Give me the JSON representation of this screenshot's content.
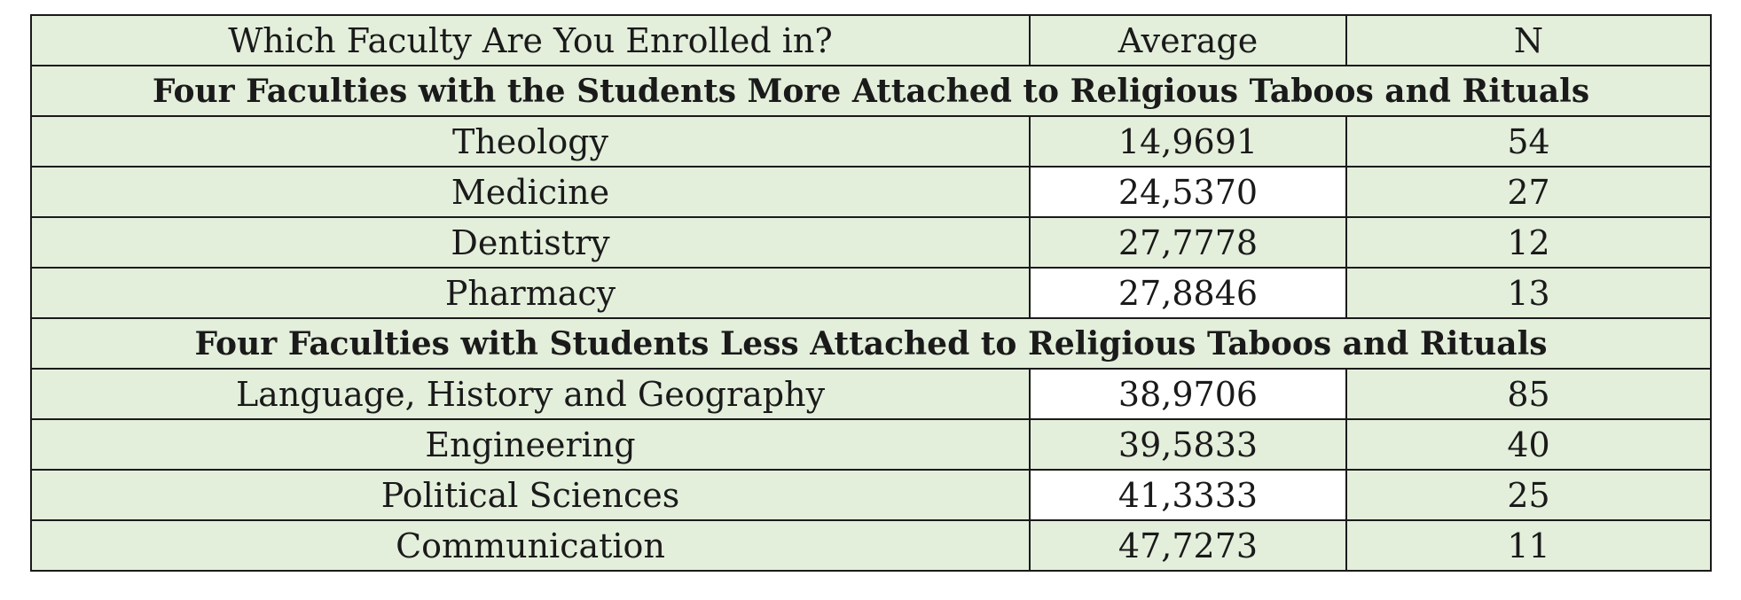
{
  "header": {
    "faculty": "Which Faculty Are You Enrolled in?",
    "average": "Average",
    "n": "N"
  },
  "sections": [
    {
      "title": "Four Faculties with the Students More Attached to Religious Taboos and Rituals",
      "rows": [
        {
          "faculty": "Theology",
          "average": "14,9691",
          "n": "54",
          "average_bg": "#e3eedb"
        },
        {
          "faculty": "Medicine",
          "average": "24,5370",
          "n": "27",
          "average_bg": "#ffffff"
        },
        {
          "faculty": "Dentistry",
          "average": "27,7778",
          "n": "12",
          "average_bg": "#e3eedb"
        },
        {
          "faculty": "Pharmacy",
          "average": "27,8846",
          "n": "13",
          "average_bg": "#ffffff"
        }
      ]
    },
    {
      "title": "Four Faculties with Students Less Attached to Religious Taboos and Rituals",
      "rows": [
        {
          "faculty": "Language, History and Geography",
          "average": "38,9706",
          "n": "85",
          "average_bg": "#ffffff"
        },
        {
          "faculty": "Engineering",
          "average": "39,5833",
          "n": "40",
          "average_bg": "#e3eedb"
        },
        {
          "faculty": "Political Sciences",
          "average": "41,3333",
          "n": "25",
          "average_bg": "#ffffff"
        },
        {
          "faculty": "Communication",
          "average": "47,7273",
          "n": "11",
          "average_bg": "#e3eedb"
        }
      ]
    }
  ],
  "colors": {
    "cell_fill": "#e3eedb",
    "highlight_fill": "#ffffff",
    "border": "#1a1a1a"
  }
}
